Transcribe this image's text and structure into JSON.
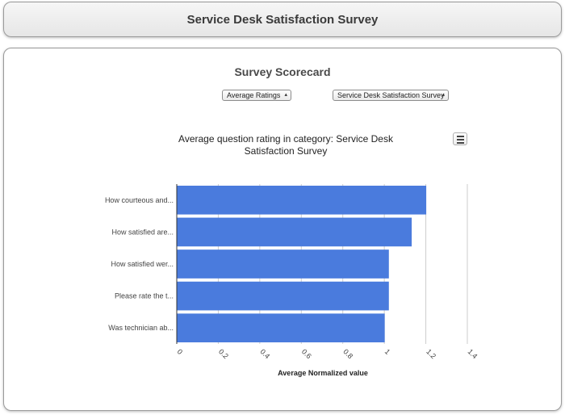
{
  "header": {
    "title": "Service Desk Satisfaction Survey"
  },
  "main": {
    "title": "Survey Scorecard",
    "filters": {
      "metric_select": "Average Ratings",
      "survey_select": "Service Desk Satisfaction Survey"
    },
    "chart_menu_icon": "hamburger-menu-icon"
  },
  "chart_data": {
    "type": "bar",
    "orientation": "horizontal",
    "title_lines": [
      "Average question rating in category: Service Desk",
      "Satisfaction Survey"
    ],
    "categories": [
      "How courteous and...",
      "How satisfied are...",
      "How satisfied wer...",
      "Please rate the t...",
      "Was technician ab..."
    ],
    "values": [
      1.2,
      1.13,
      1.02,
      1.02,
      1.0
    ],
    "xlabel": "Average Normalized value",
    "ylabel": "",
    "xlim": [
      0,
      1.4
    ],
    "ticks": [
      "0",
      "0.2",
      "0.4",
      "0.6",
      "0.8",
      "1",
      "1.2",
      "1.4"
    ],
    "tick_values": [
      0,
      0.2,
      0.4,
      0.6,
      0.8,
      1,
      1.2,
      1.4
    ],
    "bar_color": "#4a7bdd",
    "grid": true
  }
}
